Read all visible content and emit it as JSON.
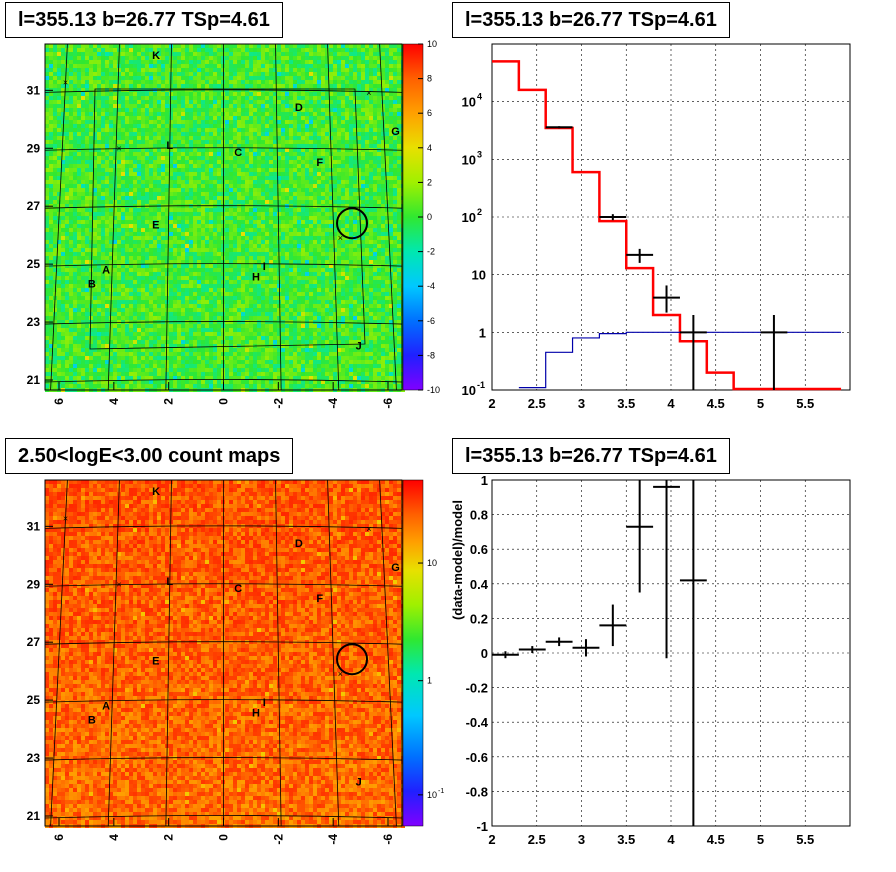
{
  "panels": {
    "top_left_title": "l=355.13 b=26.77 TSp=4.61",
    "top_right_title": "l=355.13 b=26.77 TSp=4.61",
    "bottom_left_title": "2.50<logE<3.00 count maps",
    "bottom_right_title": "l=355.13 b=26.77 TSp=4.61"
  },
  "chart_data": [
    {
      "id": "residual_map",
      "type": "heatmap",
      "title": "l=355.13 b=26.77 TSp=4.61",
      "x_ticks": [
        "6",
        "4",
        "2",
        "0",
        "-2",
        "-4",
        "-6"
      ],
      "y_ticks": [
        "21",
        "23",
        "25",
        "27",
        "29",
        "31"
      ],
      "colorbar_ticks": [
        "10",
        "8",
        "6",
        "4",
        "2",
        "0",
        "-2",
        "-4",
        "-6",
        "-8",
        "-10"
      ],
      "colorbar_range": [
        -10,
        10
      ],
      "source_labels": [
        "K",
        "D",
        "G",
        "L",
        "C",
        "F",
        "E",
        "A",
        "B",
        "I",
        "H",
        "J"
      ],
      "grid_colors": [
        "#0000ff",
        "#00ffff",
        "#00ff00",
        "#ffff00",
        "#ff0000",
        "#ff00ff"
      ]
    },
    {
      "id": "spectrum",
      "type": "line",
      "title": "l=355.13 b=26.77 TSp=4.61",
      "xlim": [
        2,
        6
      ],
      "ylim": [
        0.1,
        100000
      ],
      "y_scale": "log",
      "x_ticks": [
        "2",
        "2.5",
        "3",
        "3.5",
        "4",
        "4.5",
        "5",
        "5.5"
      ],
      "y_ticks": [
        "10^-1",
        "1",
        "10",
        "10^2",
        "10^3",
        "10^4"
      ],
      "grid": true,
      "series": [
        {
          "color": "#ff0000",
          "step_edges": [
            2.0,
            2.3,
            2.6,
            2.9,
            3.2,
            3.5,
            3.8,
            4.1,
            4.4,
            4.7,
            5.0,
            5.3,
            5.6,
            5.9
          ],
          "values": [
            50000,
            16000,
            3500,
            600,
            85,
            13,
            2.0,
            0.7,
            0.2,
            0.1,
            0.1,
            0.1,
            0.1
          ]
        },
        {
          "color": "#0000aa",
          "step_edges": [
            2.3,
            2.6,
            2.9,
            3.2,
            3.5,
            3.8,
            4.1,
            4.4,
            4.7,
            5.0,
            5.3,
            5.6,
            5.9
          ],
          "values": [
            0.11,
            0.45,
            0.8,
            0.95,
            1.0,
            1.0,
            1.0,
            1.0,
            1.0,
            1.0,
            1.0,
            1.0
          ]
        },
        {
          "color": "#000000",
          "points": [
            {
              "x": 2.75,
              "y": 3600,
              "xerr": 0.15,
              "ylo": 3450,
              "yhi": 3750
            },
            {
              "x": 3.35,
              "y": 100,
              "xerr": 0.15,
              "ylo": 88,
              "yhi": 112
            },
            {
              "x": 3.65,
              "y": 22,
              "xerr": 0.15,
              "ylo": 16,
              "yhi": 28
            },
            {
              "x": 3.95,
              "y": 4,
              "xerr": 0.15,
              "ylo": 2.2,
              "yhi": 6.5
            },
            {
              "x": 4.25,
              "y": 1,
              "xerr": 0.15,
              "ylo": 0.1,
              "yhi": 2
            },
            {
              "x": 5.15,
              "y": 1,
              "xerr": 0.15,
              "ylo": 0.1,
              "yhi": 2
            }
          ]
        }
      ]
    },
    {
      "id": "count_map",
      "type": "heatmap",
      "title": "2.50<logE<3.00 count maps",
      "x_ticks": [
        "6",
        "4",
        "2",
        "0",
        "-2",
        "-4",
        "-6"
      ],
      "y_ticks": [
        "21",
        "23",
        "25",
        "27",
        "29",
        "31"
      ],
      "colorbar_ticks": [
        "10",
        "1",
        "10^-1"
      ],
      "colorbar_scale": "log",
      "source_labels": [
        "K",
        "D",
        "G",
        "L",
        "C",
        "F",
        "E",
        "A",
        "B",
        "I",
        "H",
        "J"
      ]
    },
    {
      "id": "residual_ratio",
      "type": "scatter",
      "title": "l=355.13 b=26.77 TSp=4.61",
      "xlim": [
        2,
        6
      ],
      "ylim": [
        -1,
        1
      ],
      "ylabel": "(data-model)/model",
      "x_ticks": [
        "2",
        "2.5",
        "3",
        "3.5",
        "4",
        "4.5",
        "5",
        "5.5"
      ],
      "y_ticks": [
        "-1",
        "-0.8",
        "-0.6",
        "-0.4",
        "-0.2",
        "0",
        "0.2",
        "0.4",
        "0.6",
        "0.8",
        "1"
      ],
      "grid": true,
      "points": [
        {
          "x": 2.15,
          "y": -0.01,
          "xerr": 0.15,
          "ylo": -0.03,
          "yhi": 0.01
        },
        {
          "x": 2.45,
          "y": 0.02,
          "xerr": 0.15,
          "ylo": 0.0,
          "yhi": 0.04
        },
        {
          "x": 2.75,
          "y": 0.065,
          "xerr": 0.15,
          "ylo": 0.04,
          "yhi": 0.09
        },
        {
          "x": 3.05,
          "y": 0.03,
          "xerr": 0.15,
          "ylo": -0.02,
          "yhi": 0.08
        },
        {
          "x": 3.35,
          "y": 0.16,
          "xerr": 0.15,
          "ylo": 0.04,
          "yhi": 0.28
        },
        {
          "x": 3.65,
          "y": 0.73,
          "xerr": 0.15,
          "ylo": 0.35,
          "yhi": 1.0
        },
        {
          "x": 3.95,
          "y": 0.96,
          "xerr": 0.15,
          "ylo": -0.03,
          "yhi": 1.0
        },
        {
          "x": 4.25,
          "y": 0.42,
          "xerr": 0.15,
          "ylo": -1.0,
          "yhi": 1.0
        }
      ]
    }
  ]
}
